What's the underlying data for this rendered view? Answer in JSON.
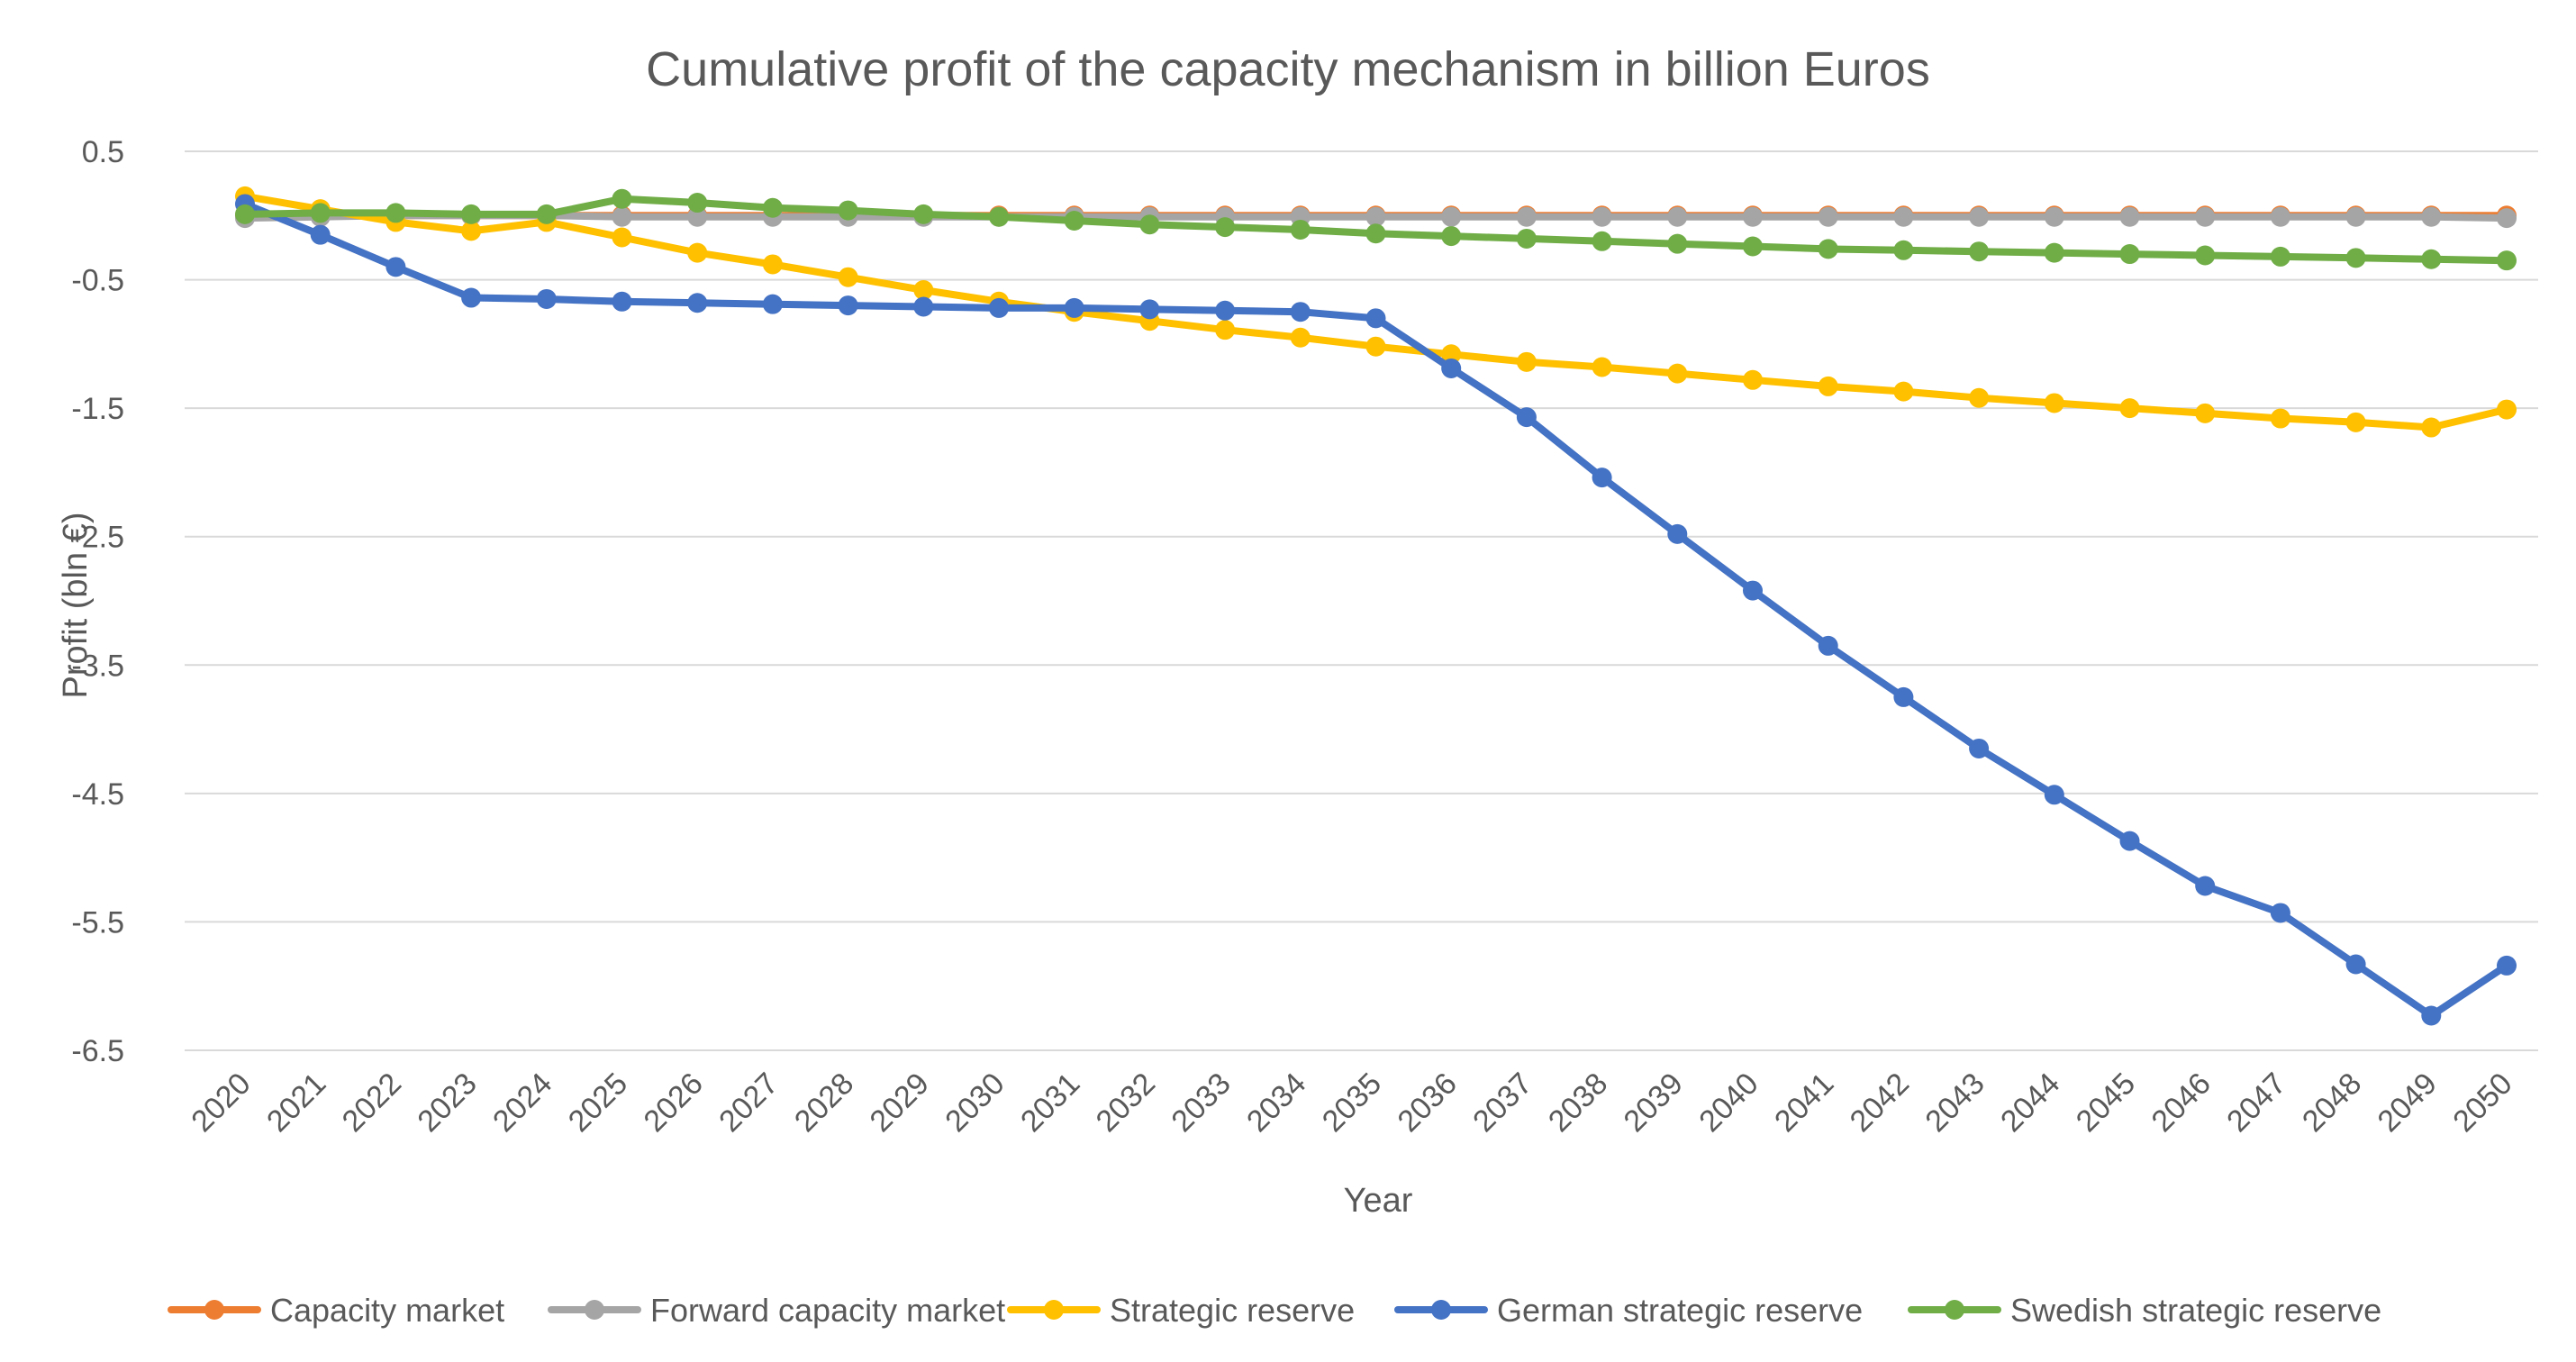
{
  "chart_data": {
    "type": "line",
    "title": "Cumulative profit of the capacity mechanism in billion Euros",
    "xlabel": "Year",
    "ylabel": "Profit (bln €)",
    "ylim": [
      -6.5,
      0.5
    ],
    "y_ticks": [
      "0.5",
      "-0.5",
      "-1.5",
      "-2.5",
      "-3.5",
      "-4.5",
      "-5.5",
      "-6.5"
    ],
    "grid": true,
    "legend_position": "bottom",
    "categories": [
      "2020",
      "2021",
      "2022",
      "2023",
      "2024",
      "2025",
      "2026",
      "2027",
      "2028",
      "2029",
      "2030",
      "2031",
      "2032",
      "2033",
      "2034",
      "2035",
      "2036",
      "2037",
      "2038",
      "2039",
      "2040",
      "2041",
      "2042",
      "2043",
      "2044",
      "2045",
      "2046",
      "2047",
      "2048",
      "2049",
      "2050"
    ],
    "series": [
      {
        "name": "Capacity market",
        "color": "#ed7d31",
        "values": [
          0,
          0,
          0,
          0,
          0,
          0,
          0,
          0,
          0,
          0,
          0,
          0,
          0,
          0,
          0,
          0,
          0,
          0,
          0,
          0,
          0,
          0,
          0,
          0,
          0,
          0,
          0,
          0,
          0,
          0,
          0
        ]
      },
      {
        "name": "Forward capacity market",
        "color": "#a5a5a5",
        "values": [
          -0.02,
          -0.01,
          0,
          0,
          0,
          -0.01,
          -0.01,
          -0.01,
          -0.01,
          -0.01,
          -0.01,
          -0.01,
          -0.01,
          -0.01,
          -0.01,
          -0.01,
          -0.01,
          -0.01,
          -0.01,
          -0.01,
          -0.01,
          -0.01,
          -0.01,
          -0.01,
          -0.01,
          -0.01,
          -0.01,
          -0.01,
          -0.01,
          -0.01,
          -0.02
        ]
      },
      {
        "name": "Strategic reserve",
        "color": "#ffc000",
        "values": [
          0.15,
          0.05,
          -0.05,
          -0.12,
          -0.05,
          -0.17,
          -0.29,
          -0.38,
          -0.48,
          -0.58,
          -0.67,
          -0.75,
          -0.82,
          -0.89,
          -0.95,
          -1.02,
          -1.08,
          -1.14,
          -1.18,
          -1.23,
          -1.28,
          -1.33,
          -1.37,
          -1.42,
          -1.46,
          -1.5,
          -1.54,
          -1.58,
          -1.61,
          -1.65,
          -1.51
        ]
      },
      {
        "name": "German strategic reserve",
        "color": "#4472c4",
        "values": [
          0.09,
          -0.15,
          -0.4,
          -0.64,
          -0.65,
          -0.67,
          -0.68,
          -0.69,
          -0.7,
          -0.71,
          -0.72,
          -0.72,
          -0.73,
          -0.74,
          -0.75,
          -0.8,
          -1.19,
          -1.57,
          -2.04,
          -2.48,
          -2.92,
          -3.35,
          -3.75,
          -4.15,
          -4.51,
          -4.87,
          -5.22,
          -5.43,
          -5.83,
          -6.23,
          -5.84
        ]
      },
      {
        "name": "Swedish strategic reserve",
        "color": "#70ad47",
        "values": [
          0.01,
          0.02,
          0.02,
          0.01,
          0.01,
          0.13,
          0.1,
          0.06,
          0.04,
          0.01,
          -0.01,
          -0.04,
          -0.07,
          -0.09,
          -0.11,
          -0.14,
          -0.16,
          -0.18,
          -0.2,
          -0.22,
          -0.24,
          -0.26,
          -0.27,
          -0.28,
          -0.29,
          -0.3,
          -0.31,
          -0.32,
          -0.33,
          -0.34,
          -0.35
        ]
      }
    ]
  }
}
